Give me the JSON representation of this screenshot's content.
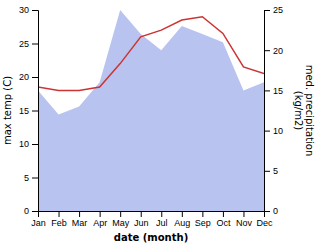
{
  "chart_data": {
    "type": "line",
    "xlabel": "date (month)",
    "ylabel": "max temp (C)",
    "y2label": "med. precipitation\n(kg/m2)",
    "categories": [
      "Jan",
      "Feb",
      "Mar",
      "Apr",
      "May",
      "Jun",
      "Jul",
      "Aug",
      "Sep",
      "Oct",
      "Nov",
      "Dec"
    ],
    "series": [
      {
        "type": "area",
        "axis": "y2",
        "color": "#b8c4ef",
        "values": [
          15,
          12,
          13,
          16,
          25,
          22,
          20,
          23,
          22,
          21,
          15,
          16
        ]
      },
      {
        "type": "line",
        "color": "#cc3333",
        "values": [
          18.5,
          18.0,
          18.0,
          18.5,
          22.0,
          26.0,
          27.0,
          28.5,
          29.0,
          26.5,
          21.5,
          20.5
        ]
      }
    ],
    "ylim": [
      0,
      30
    ],
    "yticks": [
      0,
      5,
      10,
      15,
      20,
      25,
      30
    ],
    "y2lim": [
      0,
      25
    ],
    "y2ticks": [
      0,
      5,
      10,
      15,
      20,
      25
    ]
  }
}
